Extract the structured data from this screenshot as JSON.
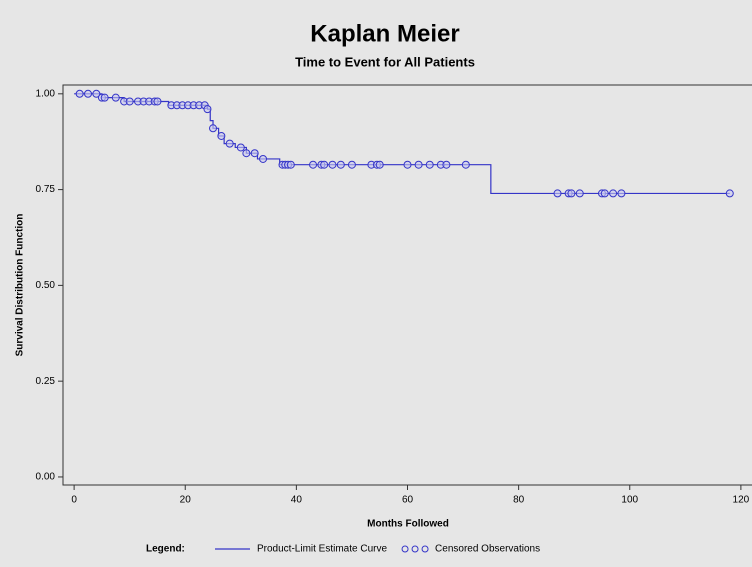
{
  "chart_data": {
    "type": "kaplan-meier",
    "title": "Kaplan Meier",
    "subtitle": "Time to Event for All Patients",
    "x_label": "Months Followed",
    "y_label": "Survival Distribution Function",
    "xlim": [
      -2,
      122
    ],
    "ylim": [
      -0.021,
      1.023
    ],
    "xticks": [
      0,
      20,
      40,
      60,
      80,
      100,
      120
    ],
    "yticks": [
      {
        "value": 0,
        "label": "0.00"
      },
      {
        "value": 0.25,
        "label": "0.25"
      },
      {
        "value": 0.5,
        "label": "0.50"
      },
      {
        "value": 0.75,
        "label": "0.75"
      },
      {
        "value": 1,
        "label": "1.00"
      }
    ],
    "legend_title": "Legend:",
    "series": [
      {
        "name": "Product-Limit Estimate Curve",
        "color": "#3535c8",
        "style": "step",
        "x": [
          0,
          5,
          9,
          17,
          24,
          24.5,
          25,
          26,
          27,
          29,
          31,
          33,
          37,
          75,
          118
        ],
        "values": [
          1.0,
          0.99,
          0.98,
          0.97,
          0.96,
          0.93,
          0.91,
          0.89,
          0.87,
          0.86,
          0.845,
          0.83,
          0.815,
          0.74,
          0.74
        ]
      },
      {
        "name": "Censored Observations",
        "color": "#3535c8",
        "style": "markers",
        "x": [
          1,
          2.5,
          4,
          5,
          5.5,
          7.5,
          9,
          10,
          11.5,
          12.5,
          13.5,
          14.5,
          15,
          17.5,
          18.5,
          19.5,
          20.5,
          21.5,
          22.5,
          23.5,
          24,
          25,
          26.5,
          28,
          30,
          31,
          32.5,
          34,
          37.5,
          38,
          38.5,
          39,
          43,
          44.5,
          45,
          46.5,
          48,
          50,
          53.5,
          54.5,
          55,
          60,
          62,
          64,
          66,
          67,
          70.5,
          87,
          89,
          89.5,
          91,
          95,
          95.5,
          97,
          98.5,
          118
        ],
        "values": [
          1,
          1,
          1,
          0.99,
          0.99,
          0.99,
          0.98,
          0.98,
          0.98,
          0.98,
          0.98,
          0.98,
          0.98,
          0.97,
          0.97,
          0.97,
          0.97,
          0.97,
          0.97,
          0.97,
          0.96,
          0.91,
          0.89,
          0.87,
          0.86,
          0.845,
          0.845,
          0.83,
          0.815,
          0.815,
          0.815,
          0.815,
          0.815,
          0.815,
          0.815,
          0.815,
          0.815,
          0.815,
          0.815,
          0.815,
          0.815,
          0.815,
          0.815,
          0.815,
          0.815,
          0.815,
          0.815,
          0.74,
          0.74,
          0.74,
          0.74,
          0.74,
          0.74,
          0.74,
          0.74,
          0.74
        ]
      }
    ]
  }
}
